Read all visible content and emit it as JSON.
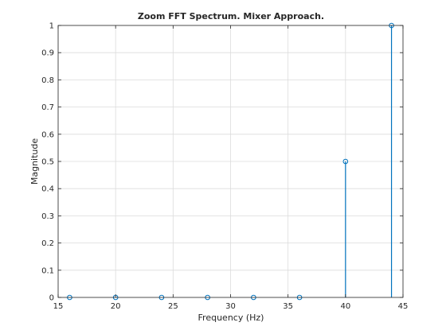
{
  "chart_data": {
    "type": "stem",
    "title": "Zoom FFT Spectrum. Mixer Approach.",
    "xlabel": "Frequency (Hz)",
    "ylabel": "Magnitude",
    "xlim": [
      15,
      45
    ],
    "ylim": [
      0,
      1
    ],
    "xticks": [
      "15",
      "20",
      "25",
      "30",
      "35",
      "40",
      "45"
    ],
    "yticks": [
      "0",
      "0.1",
      "0.2",
      "0.3",
      "0.4",
      "0.5",
      "0.6",
      "0.7",
      "0.8",
      "0.9",
      "1"
    ],
    "grid": true,
    "x": [
      16,
      20,
      24,
      28,
      32,
      36,
      40,
      44
    ],
    "y": [
      0,
      0,
      0,
      0,
      0,
      0,
      0.5,
      1.0
    ],
    "colors": {
      "stem": "#0072BD",
      "grid": "#dcdcdc",
      "axis": "#262626"
    }
  }
}
